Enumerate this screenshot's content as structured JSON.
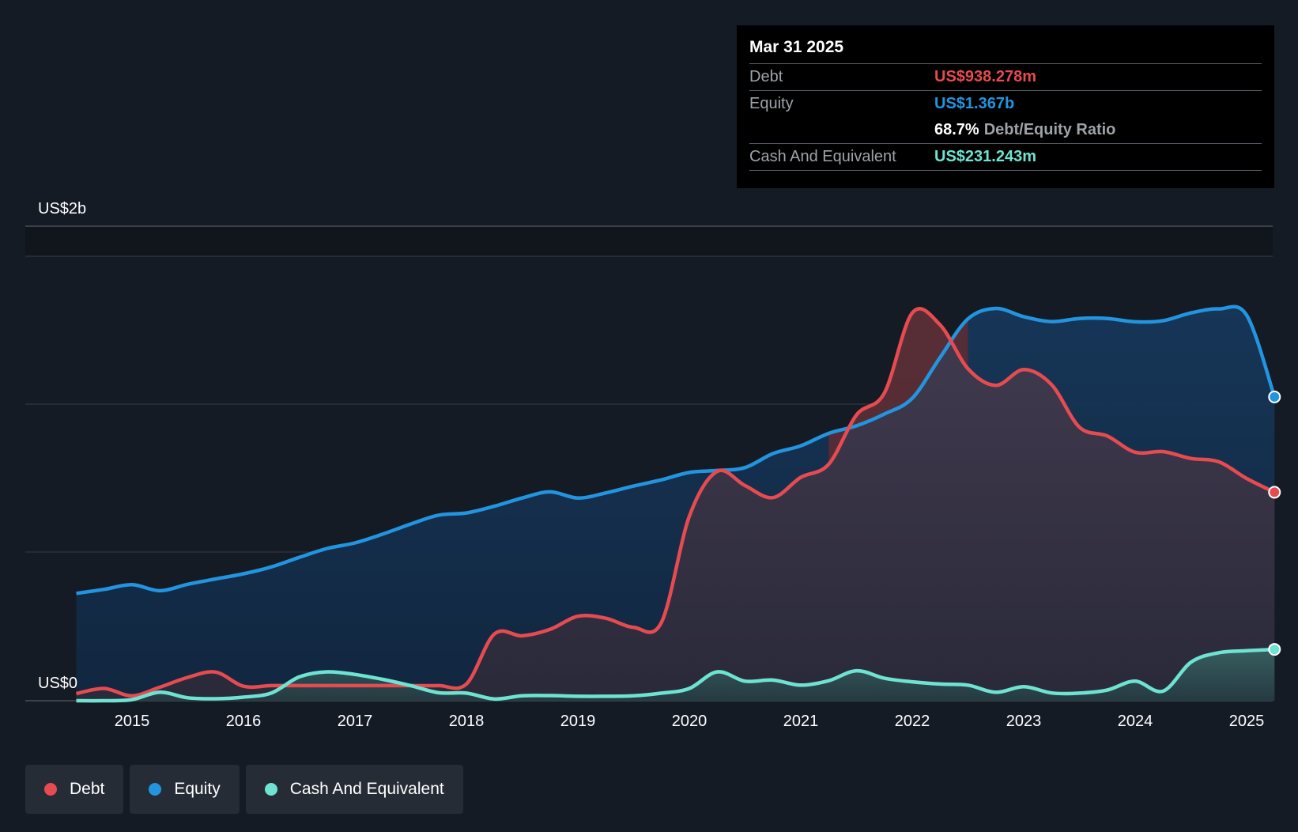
{
  "chart_data": {
    "type": "area",
    "title": "",
    "ylim": [
      0,
      2000
    ],
    "y_unit": "US$m",
    "y_tick_labels": {
      "top": "US$2b",
      "bottom": "US$0"
    },
    "x_ticks": [
      "2015",
      "2016",
      "2017",
      "2018",
      "2019",
      "2020",
      "2021",
      "2022",
      "2023",
      "2024",
      "2025"
    ],
    "grid": true,
    "series": [
      {
        "name": "Equity",
        "color": "#2394df",
        "points": [
          [
            2014.5,
            483
          ],
          [
            2014.75,
            501
          ],
          [
            2015.0,
            522
          ],
          [
            2015.25,
            495
          ],
          [
            2015.5,
            524
          ],
          [
            2015.75,
            548
          ],
          [
            2016.0,
            571
          ],
          [
            2016.25,
            602
          ],
          [
            2016.5,
            645
          ],
          [
            2016.75,
            685
          ],
          [
            2017.0,
            710
          ],
          [
            2017.25,
            750
          ],
          [
            2017.5,
            795
          ],
          [
            2017.75,
            835
          ],
          [
            2018.0,
            845
          ],
          [
            2018.25,
            875
          ],
          [
            2018.5,
            912
          ],
          [
            2018.75,
            940
          ],
          [
            2019.0,
            912
          ],
          [
            2019.25,
            935
          ],
          [
            2019.5,
            966
          ],
          [
            2019.75,
            994
          ],
          [
            2020.0,
            1027
          ],
          [
            2020.25,
            1036
          ],
          [
            2020.5,
            1049
          ],
          [
            2020.75,
            1112
          ],
          [
            2021.0,
            1147
          ],
          [
            2021.25,
            1203
          ],
          [
            2021.5,
            1237
          ],
          [
            2021.75,
            1290
          ],
          [
            2022.0,
            1361
          ],
          [
            2022.25,
            1545
          ],
          [
            2022.5,
            1718
          ],
          [
            2022.75,
            1765
          ],
          [
            2023.0,
            1728
          ],
          [
            2023.25,
            1706
          ],
          [
            2023.5,
            1720
          ],
          [
            2023.75,
            1720
          ],
          [
            2024.0,
            1705
          ],
          [
            2024.25,
            1710
          ],
          [
            2024.5,
            1745
          ],
          [
            2024.75,
            1763
          ],
          [
            2025.0,
            1735
          ],
          [
            2025.25,
            1367
          ]
        ]
      },
      {
        "name": "Debt",
        "color": "#e64b50",
        "points": [
          [
            2014.5,
            32
          ],
          [
            2014.75,
            55
          ],
          [
            2015.0,
            22
          ],
          [
            2015.25,
            61
          ],
          [
            2015.5,
            105
          ],
          [
            2015.75,
            129
          ],
          [
            2016.0,
            65
          ],
          [
            2016.25,
            68
          ],
          [
            2016.5,
            68
          ],
          [
            2016.75,
            68
          ],
          [
            2017.0,
            68
          ],
          [
            2017.25,
            68
          ],
          [
            2017.5,
            68
          ],
          [
            2017.75,
            68
          ],
          [
            2018.0,
            75
          ],
          [
            2018.25,
            300
          ],
          [
            2018.5,
            292
          ],
          [
            2018.75,
            321
          ],
          [
            2019.0,
            380
          ],
          [
            2019.25,
            371
          ],
          [
            2019.5,
            330
          ],
          [
            2019.75,
            353
          ],
          [
            2020.0,
            830
          ],
          [
            2020.25,
            1032
          ],
          [
            2020.5,
            968
          ],
          [
            2020.75,
            914
          ],
          [
            2021.0,
            1005
          ],
          [
            2021.25,
            1064
          ],
          [
            2021.5,
            1286
          ],
          [
            2021.75,
            1385
          ],
          [
            2022.0,
            1745
          ],
          [
            2022.25,
            1691
          ],
          [
            2022.5,
            1494
          ],
          [
            2022.75,
            1419
          ],
          [
            2023.0,
            1490
          ],
          [
            2023.25,
            1422
          ],
          [
            2023.5,
            1231
          ],
          [
            2023.75,
            1191
          ],
          [
            2024.0,
            1118
          ],
          [
            2024.25,
            1121
          ],
          [
            2024.5,
            1090
          ],
          [
            2024.75,
            1075
          ],
          [
            2025.0,
            1000
          ],
          [
            2025.25,
            938
          ]
        ]
      },
      {
        "name": "Cash And Equivalent",
        "color": "#6fe3d2",
        "points": [
          [
            2014.5,
            0
          ],
          [
            2014.75,
            0
          ],
          [
            2015.0,
            5
          ],
          [
            2015.25,
            38
          ],
          [
            2015.5,
            13
          ],
          [
            2015.75,
            9
          ],
          [
            2016.0,
            16
          ],
          [
            2016.25,
            35
          ],
          [
            2016.5,
            107
          ],
          [
            2016.75,
            130
          ],
          [
            2017.0,
            118
          ],
          [
            2017.25,
            96
          ],
          [
            2017.5,
            68
          ],
          [
            2017.75,
            36
          ],
          [
            2018.0,
            34
          ],
          [
            2018.25,
            8
          ],
          [
            2018.5,
            22
          ],
          [
            2018.75,
            23
          ],
          [
            2019.0,
            20
          ],
          [
            2019.25,
            20
          ],
          [
            2019.5,
            22
          ],
          [
            2019.75,
            34
          ],
          [
            2020.0,
            55
          ],
          [
            2020.25,
            130
          ],
          [
            2020.5,
            88
          ],
          [
            2020.75,
            93
          ],
          [
            2021.0,
            70
          ],
          [
            2021.25,
            90
          ],
          [
            2021.5,
            135
          ],
          [
            2021.75,
            101
          ],
          [
            2022.0,
            85
          ],
          [
            2022.25,
            75
          ],
          [
            2022.5,
            70
          ],
          [
            2022.75,
            38
          ],
          [
            2023.0,
            63
          ],
          [
            2023.25,
            35
          ],
          [
            2023.5,
            34
          ],
          [
            2023.75,
            48
          ],
          [
            2024.0,
            88
          ],
          [
            2024.25,
            43
          ],
          [
            2024.5,
            173
          ],
          [
            2024.75,
            216
          ],
          [
            2025.0,
            225
          ],
          [
            2025.25,
            231
          ]
        ]
      }
    ],
    "tooltip": {
      "date": "Mar 31 2025",
      "debt_label": "Debt",
      "debt_value": "US$938.278m",
      "equity_label": "Equity",
      "equity_value": "US$1.367b",
      "ratio_value": "68.7%",
      "ratio_label": "Debt/Equity Ratio",
      "cash_label": "Cash And Equivalent",
      "cash_value": "US$231.243m"
    },
    "legend": [
      "Debt",
      "Equity",
      "Cash And Equivalent"
    ]
  },
  "colors": {
    "debt": "#e64b50",
    "equity": "#2394df",
    "cash": "#6fe3d2",
    "background": "#151b24"
  }
}
